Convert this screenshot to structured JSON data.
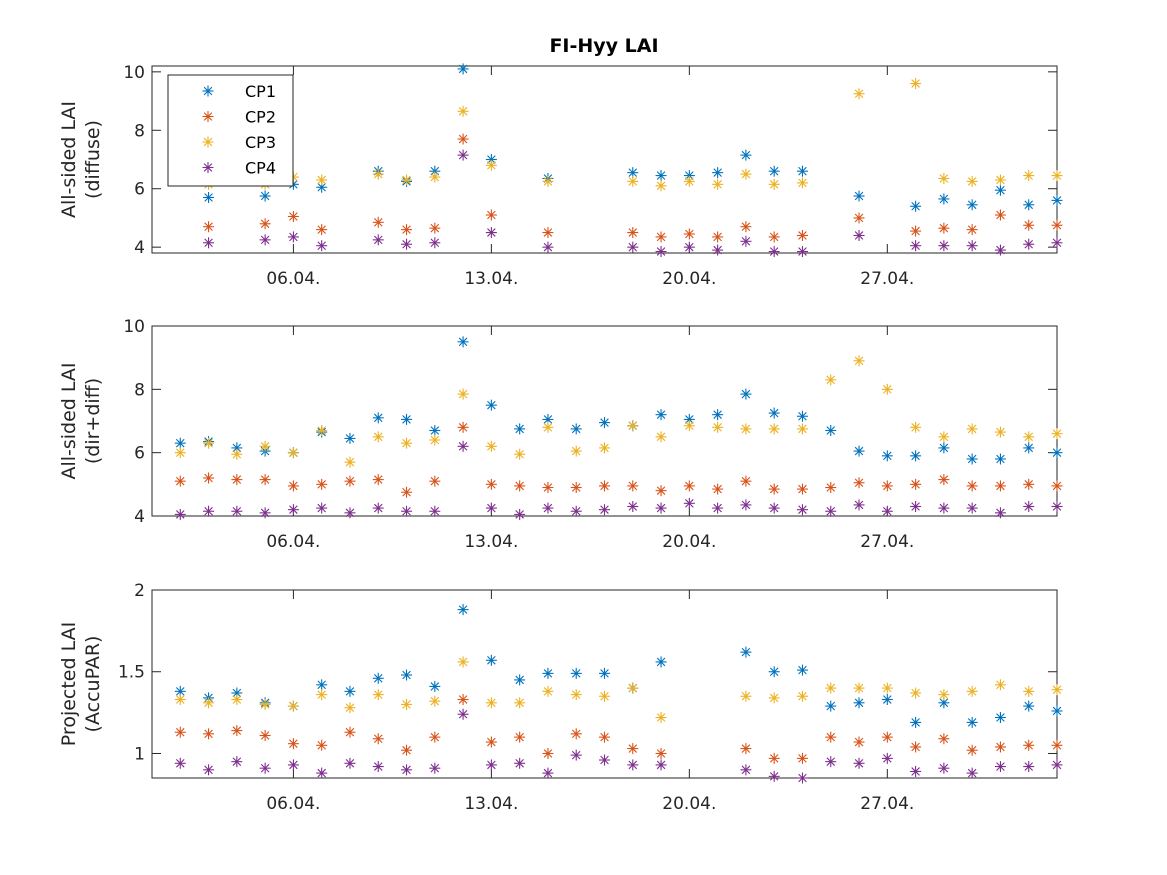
{
  "figure_title": "FI-Hyy LAI",
  "chart_data": [
    {
      "type": "scatter",
      "title": "FI-Hyy LAI",
      "xlabel": "",
      "ylabel_lines": [
        "All-sided LAI",
        "(diffuse)"
      ],
      "xlim": [
        1,
        33
      ],
      "ylim": [
        3.8,
        10.2
      ],
      "yticks": [
        4,
        6,
        8,
        10
      ],
      "yticklabels": [
        "4",
        "6",
        "8",
        "10"
      ],
      "xticks": [
        6,
        13,
        20,
        27
      ],
      "xticklabels": [
        "06.04.",
        "13.04.",
        "20.04.",
        "27.04."
      ],
      "grid": false,
      "legend": {
        "placement": "top-left",
        "entries": [
          "CP1",
          "CP2",
          "CP3",
          "CP4"
        ]
      },
      "x": [
        3,
        5,
        6,
        7,
        9,
        10,
        11,
        12,
        13,
        15,
        18,
        19,
        20,
        21,
        22,
        23,
        24,
        26,
        28,
        29,
        30,
        31,
        32,
        33
      ],
      "series": [
        {
          "name": "CP1",
          "color": "#0072BD",
          "values": [
            5.7,
            5.75,
            6.15,
            6.05,
            6.6,
            6.25,
            6.6,
            10.1,
            7.0,
            6.35,
            6.55,
            6.45,
            6.45,
            6.55,
            7.15,
            6.6,
            6.6,
            5.75,
            5.4,
            5.65,
            5.45,
            5.95,
            5.45,
            5.6
          ]
        },
        {
          "name": "CP2",
          "color": "#D95319",
          "values": [
            4.7,
            4.8,
            5.05,
            4.6,
            4.85,
            4.6,
            4.65,
            7.7,
            5.1,
            4.5,
            4.5,
            4.35,
            4.45,
            4.35,
            4.7,
            4.35,
            4.4,
            5.0,
            4.55,
            4.65,
            4.6,
            5.1,
            4.75,
            4.75
          ]
        },
        {
          "name": "CP3",
          "color": "#EDB120",
          "values": [
            6.15,
            6.15,
            6.4,
            6.3,
            6.5,
            6.3,
            6.4,
            8.65,
            6.8,
            6.25,
            6.25,
            6.1,
            6.25,
            6.15,
            6.5,
            6.15,
            6.2,
            9.25,
            9.6,
            6.35,
            6.25,
            6.3,
            6.45,
            6.45
          ]
        },
        {
          "name": "CP4",
          "color": "#7E2F8E",
          "values": [
            4.15,
            4.25,
            4.35,
            4.05,
            4.25,
            4.1,
            4.15,
            7.15,
            4.5,
            4.0,
            4.0,
            3.85,
            4.0,
            3.9,
            4.2,
            3.85,
            3.85,
            4.4,
            4.05,
            4.05,
            4.05,
            3.9,
            4.1,
            4.15
          ]
        }
      ]
    },
    {
      "type": "scatter",
      "title": "",
      "xlabel": "",
      "ylabel_lines": [
        "All-sided LAI",
        "(dir+diff)"
      ],
      "xlim": [
        1,
        33
      ],
      "ylim": [
        4,
        10
      ],
      "yticks": [
        4,
        6,
        8,
        10
      ],
      "yticklabels": [
        "4",
        "6",
        "8",
        "10"
      ],
      "xticks": [
        6,
        13,
        20,
        27
      ],
      "xticklabels": [
        "06.04.",
        "13.04.",
        "20.04.",
        "27.04."
      ],
      "grid": false,
      "x": [
        2,
        3,
        4,
        5,
        6,
        7,
        8,
        9,
        10,
        11,
        12,
        13,
        14,
        15,
        16,
        17,
        18,
        19,
        20,
        21,
        22,
        23,
        24,
        25,
        26,
        27,
        28,
        29,
        30,
        31,
        32,
        33
      ],
      "series": [
        {
          "name": "CP1",
          "color": "#0072BD",
          "values": [
            6.3,
            6.35,
            6.15,
            6.05,
            6.0,
            6.65,
            6.45,
            7.1,
            7.05,
            6.7,
            9.5,
            7.5,
            6.75,
            7.05,
            6.75,
            6.95,
            6.85,
            7.2,
            7.05,
            7.2,
            7.85,
            7.25,
            7.15,
            6.7,
            6.05,
            5.9,
            5.9,
            6.15,
            5.8,
            5.8,
            6.15,
            6.0
          ]
        },
        {
          "name": "CP2",
          "color": "#D95319",
          "values": [
            5.1,
            5.2,
            5.15,
            5.15,
            4.95,
            5.0,
            5.1,
            5.15,
            4.75,
            5.1,
            6.8,
            5.0,
            4.95,
            4.9,
            4.9,
            4.95,
            4.95,
            4.8,
            4.95,
            4.85,
            5.1,
            4.85,
            4.85,
            4.9,
            5.05,
            4.95,
            5.0,
            5.15,
            4.95,
            4.95,
            5.0,
            4.95
          ]
        },
        {
          "name": "CP3",
          "color": "#EDB120",
          "values": [
            6.0,
            6.3,
            5.95,
            6.2,
            6.0,
            6.7,
            5.7,
            6.5,
            6.3,
            6.4,
            7.85,
            6.2,
            5.95,
            6.8,
            6.05,
            6.15,
            6.85,
            6.5,
            6.85,
            6.8,
            6.75,
            6.75,
            6.75,
            8.3,
            8.9,
            8.0,
            6.8,
            6.5,
            6.75,
            6.65,
            6.5,
            6.6
          ]
        },
        {
          "name": "CP4",
          "color": "#7E2F8E",
          "values": [
            4.05,
            4.15,
            4.15,
            4.1,
            4.2,
            4.25,
            4.1,
            4.25,
            4.15,
            4.15,
            6.2,
            4.25,
            4.05,
            4.25,
            4.15,
            4.2,
            4.3,
            4.25,
            4.4,
            4.25,
            4.35,
            4.25,
            4.2,
            4.15,
            4.35,
            4.15,
            4.3,
            4.25,
            4.25,
            4.1,
            4.3,
            4.3
          ]
        }
      ]
    },
    {
      "type": "scatter",
      "title": "",
      "xlabel": "",
      "ylabel_lines": [
        "Projected LAI",
        "(AccuPAR)"
      ],
      "xlim": [
        1,
        33
      ],
      "ylim": [
        0.85,
        2
      ],
      "yticks": [
        1,
        1.5,
        2
      ],
      "yticklabels": [
        "1",
        "1.5",
        "2"
      ],
      "xticks": [
        6,
        13,
        20,
        27
      ],
      "xticklabels": [
        "06.04.",
        "13.04.",
        "20.04.",
        "27.04."
      ],
      "grid": false,
      "series": [
        {
          "name": "CP1",
          "color": "#0072BD",
          "x": [
            2,
            3,
            4,
            5,
            6,
            7,
            8,
            9,
            10,
            11,
            12,
            13,
            14,
            15,
            16,
            17,
            18,
            19,
            22,
            23,
            24,
            25,
            26,
            27,
            28,
            29,
            30,
            31,
            32,
            33
          ],
          "values": [
            1.38,
            1.34,
            1.37,
            1.31,
            1.29,
            1.42,
            1.38,
            1.46,
            1.48,
            1.41,
            1.88,
            1.57,
            1.45,
            1.49,
            1.49,
            1.49,
            1.4,
            1.56,
            1.62,
            1.5,
            1.51,
            1.29,
            1.31,
            1.33,
            1.19,
            1.31,
            1.19,
            1.22,
            1.29,
            1.26
          ]
        },
        {
          "name": "CP2",
          "color": "#D95319",
          "x": [
            2,
            3,
            4,
            5,
            6,
            7,
            8,
            9,
            10,
            11,
            12,
            13,
            14,
            15,
            16,
            17,
            18,
            19,
            22,
            23,
            24,
            25,
            26,
            27,
            28,
            29,
            30,
            31,
            32,
            33
          ],
          "values": [
            1.13,
            1.12,
            1.14,
            1.11,
            1.06,
            1.05,
            1.13,
            1.09,
            1.02,
            1.1,
            1.33,
            1.07,
            1.1,
            1.0,
            1.12,
            1.1,
            1.03,
            1.0,
            1.03,
            0.97,
            0.97,
            1.1,
            1.07,
            1.1,
            1.04,
            1.09,
            1.02,
            1.04,
            1.05,
            1.05
          ]
        },
        {
          "name": "CP3",
          "color": "#EDB120",
          "x": [
            2,
            3,
            4,
            5,
            6,
            7,
            8,
            9,
            10,
            11,
            12,
            13,
            14,
            15,
            16,
            17,
            18,
            19,
            22,
            23,
            24,
            25,
            26,
            27,
            28,
            29,
            30,
            31,
            32,
            33
          ],
          "values": [
            1.33,
            1.31,
            1.33,
            1.3,
            1.29,
            1.36,
            1.28,
            1.36,
            1.3,
            1.32,
            1.56,
            1.31,
            1.31,
            1.38,
            1.36,
            1.35,
            1.4,
            1.22,
            1.35,
            1.34,
            1.35,
            1.4,
            1.4,
            1.4,
            1.37,
            1.36,
            1.38,
            1.42,
            1.38,
            1.39
          ]
        },
        {
          "name": "CP4",
          "color": "#7E2F8E",
          "x": [
            2,
            3,
            4,
            5,
            6,
            7,
            8,
            9,
            10,
            11,
            12,
            13,
            14,
            15,
            16,
            17,
            18,
            19,
            22,
            23,
            24,
            25,
            26,
            27,
            28,
            29,
            30,
            31,
            32,
            33
          ],
          "values": [
            0.94,
            0.9,
            0.95,
            0.91,
            0.93,
            0.88,
            0.94,
            0.92,
            0.9,
            0.91,
            1.24,
            0.93,
            0.94,
            0.88,
            0.99,
            0.96,
            0.93,
            0.93,
            0.9,
            0.86,
            0.85,
            0.95,
            0.94,
            0.97,
            0.89,
            0.91,
            0.88,
            0.92,
            0.92,
            0.93
          ]
        }
      ]
    }
  ]
}
